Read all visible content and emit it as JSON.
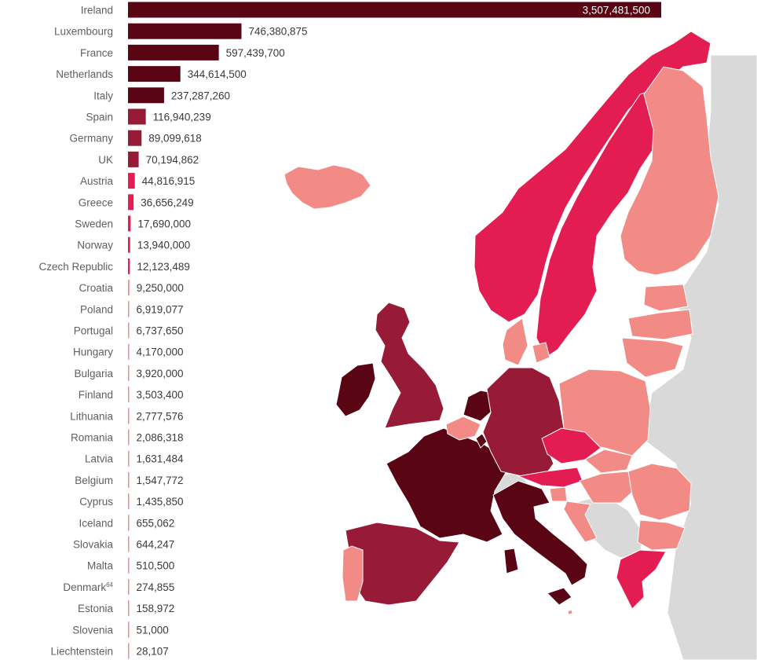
{
  "chart_data": {
    "type": "bar",
    "orientation": "horizontal",
    "categories": [
      "Ireland",
      "Luxembourg",
      "France",
      "Netherlands",
      "Italy",
      "Spain",
      "Germany",
      "UK",
      "Austria",
      "Greece",
      "Sweden",
      "Norway",
      "Czech Republic",
      "Croatia",
      "Poland",
      "Portugal",
      "Hungary",
      "Bulgaria",
      "Finland",
      "Lithuania",
      "Romania",
      "Latvia",
      "Belgium",
      "Cyprus",
      "Iceland",
      "Slovakia",
      "Malta",
      "Denmark",
      "Estonia",
      "Slovenia",
      "Liechtenstein"
    ],
    "category_notes": {
      "Denmark": "64"
    },
    "values": [
      3507481500,
      746380875,
      597439700,
      344614500,
      237287260,
      116940239,
      89099618,
      70194862,
      44816915,
      36656249,
      17690000,
      13940000,
      12123489,
      9250000,
      6919077,
      6737650,
      4170000,
      3920000,
      3503400,
      2777576,
      2086318,
      1631484,
      1547772,
      1435850,
      655062,
      644247,
      510500,
      274855,
      158972,
      51000,
      28107
    ],
    "value_labels": [
      "3,507,481,500",
      "746,380,875",
      "597,439,700",
      "344,614,500",
      "237,287,260",
      "116,940,239",
      "89,099,618",
      "70,194,862",
      "44,816,915",
      "36,656,249",
      "17,690,000",
      "13,940,000",
      "12,123,489",
      "9,250,000",
      "6,919,077",
      "6,737,650",
      "4,170,000",
      "3,920,000",
      "3,503,400",
      "2,777,576",
      "2,086,318",
      "1,631,484",
      "1,547,772",
      "1,435,850",
      "655,062",
      "644,247",
      "510,500",
      "274,855",
      "158,972",
      "51,000",
      "28,107"
    ],
    "xlim": [
      0,
      3507481500
    ],
    "grid": false,
    "legend": "none"
  },
  "colors": {
    "very_high": "#5a0513",
    "high": "#971a37",
    "medium": "#e31d52",
    "low": "#f28a86",
    "none": "#d9d9d9",
    "sea": "#ffffff"
  },
  "map": {
    "country_classes": {
      "Ireland": "very_high",
      "France": "very_high",
      "Luxembourg": "very_high",
      "Netherlands": "very_high",
      "Italy": "very_high",
      "Spain": "high",
      "Germany": "high",
      "UK": "high",
      "Austria": "medium",
      "Greece": "medium",
      "Sweden": "medium",
      "Norway": "medium",
      "Czech Republic": "medium",
      "Finland": "low",
      "Iceland": "low",
      "Portugal": "low",
      "Denmark": "low",
      "Poland": "low",
      "Belgium": "low",
      "Croatia": "low",
      "Hungary": "low",
      "Romania": "low",
      "Bulgaria": "low",
      "Lithuania": "low",
      "Latvia": "low",
      "Estonia": "low",
      "Slovakia": "low",
      "Slovenia": "low",
      "Switzerland": "none",
      "Balkans": "none",
      "Russia": "none"
    }
  }
}
